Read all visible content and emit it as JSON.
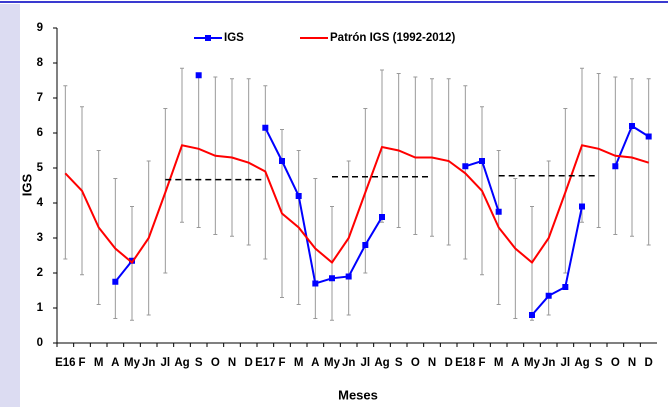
{
  "chart_data": {
    "type": "line",
    "x_label": "Meses",
    "y_label": "IGS",
    "categories": [
      "E16",
      "F",
      "M",
      "A",
      "My",
      "Jn",
      "Jl",
      "Ag",
      "S",
      "O",
      "N",
      "D",
      "E17",
      "F",
      "M",
      "A",
      "My",
      "Jn",
      "Jl",
      "Ag",
      "S",
      "O",
      "N",
      "D",
      "E18",
      "F",
      "M",
      "A",
      "My",
      "Jn",
      "Jl",
      "Ag",
      "S",
      "O",
      "N",
      "D"
    ],
    "ylim": [
      0,
      9
    ],
    "yticks": [
      0,
      1,
      2,
      3,
      4,
      5,
      6,
      7,
      8,
      9
    ],
    "series": [
      {
        "name": "IGS",
        "color": "#0000ff",
        "markers": true,
        "values": [
          null,
          null,
          null,
          1.75,
          2.35,
          null,
          null,
          null,
          7.65,
          null,
          null,
          null,
          6.15,
          5.2,
          4.2,
          1.7,
          1.85,
          1.9,
          2.8,
          3.6,
          null,
          null,
          null,
          null,
          5.05,
          5.2,
          3.75,
          null,
          0.8,
          1.35,
          1.6,
          3.9,
          null,
          5.05,
          6.2,
          5.9
        ]
      },
      {
        "name": "Patrón IGS (1992-2012)",
        "color": "#ff0000",
        "error_color": "#999999",
        "values": [
          4.85,
          4.35,
          3.3,
          2.7,
          2.3,
          3.0,
          4.3,
          5.65,
          5.55,
          5.35,
          5.3,
          5.15,
          4.9,
          3.7,
          3.3,
          2.7,
          2.3,
          3.0,
          4.3,
          5.6,
          5.5,
          5.3,
          5.3,
          5.2,
          4.85,
          4.35,
          3.3,
          2.7,
          2.3,
          3.0,
          4.3,
          5.65,
          5.55,
          5.35,
          5.3,
          5.15
        ],
        "lower": [
          2.4,
          1.95,
          1.1,
          0.7,
          0.65,
          0.8,
          2.0,
          3.45,
          3.3,
          3.1,
          3.05,
          2.8,
          2.4,
          1.3,
          1.1,
          0.7,
          0.65,
          0.8,
          2.0,
          3.45,
          3.3,
          3.1,
          3.05,
          2.8,
          2.4,
          1.95,
          1.1,
          0.7,
          0.65,
          0.8,
          2.0,
          3.45,
          3.3,
          3.1,
          3.05,
          2.8
        ],
        "upper": [
          7.35,
          6.75,
          5.5,
          4.7,
          3.9,
          5.2,
          6.7,
          7.85,
          7.7,
          7.6,
          7.55,
          7.55,
          7.35,
          6.1,
          5.5,
          4.7,
          3.9,
          5.2,
          6.7,
          7.8,
          7.7,
          7.6,
          7.55,
          7.55,
          7.35,
          6.75,
          5.5,
          4.7,
          3.9,
          5.2,
          6.7,
          7.85,
          7.7,
          7.6,
          7.55,
          7.55
        ]
      },
      {
        "color": "#000000",
        "dashed": true,
        "values": [
          null,
          null,
          null,
          null,
          null,
          null,
          4.67,
          4.67,
          4.67,
          4.67,
          4.67,
          4.67,
          4.67,
          null,
          null,
          null,
          4.75,
          4.75,
          4.75,
          4.75,
          4.75,
          4.75,
          4.75,
          null,
          null,
          null,
          4.78,
          4.78,
          4.78,
          4.78,
          4.78,
          4.78,
          4.78,
          null,
          null,
          null
        ]
      }
    ]
  }
}
